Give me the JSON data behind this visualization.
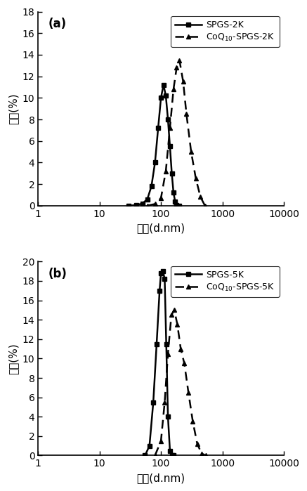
{
  "panel_a": {
    "label": "(a)",
    "ylim": [
      0,
      18
    ],
    "yticks": [
      0,
      2,
      4,
      6,
      8,
      10,
      12,
      14,
      16,
      18
    ],
    "line1_label": "SPGS-2K",
    "line2_label": "CoQ",
    "line2_label_sub": "10",
    "line2_label_suffix": "-SPGS-2K",
    "line1_x": [
      30,
      40,
      50,
      60,
      70,
      80,
      90,
      100,
      110,
      120,
      130,
      140,
      150,
      160,
      170,
      180,
      200
    ],
    "line1_y": [
      0.0,
      0.05,
      0.2,
      0.6,
      1.8,
      4.0,
      7.2,
      10.0,
      11.2,
      10.2,
      8.0,
      5.5,
      3.0,
      1.2,
      0.4,
      0.05,
      0.0
    ],
    "line2_x": [
      60,
      80,
      100,
      120,
      140,
      160,
      180,
      200,
      230,
      260,
      310,
      370,
      440,
      520
    ],
    "line2_y": [
      0.0,
      0.15,
      0.7,
      3.2,
      7.2,
      10.8,
      12.8,
      13.5,
      11.5,
      8.5,
      5.0,
      2.5,
      0.8,
      0.0
    ]
  },
  "panel_b": {
    "label": "(b)",
    "ylim": [
      0,
      20
    ],
    "yticks": [
      0,
      2,
      4,
      6,
      8,
      10,
      12,
      14,
      16,
      18,
      20
    ],
    "line1_label": "SPGS-5K",
    "line2_label": "CoQ",
    "line2_label_sub": "10",
    "line2_label_suffix": "-SPGS-5K",
    "line1_x": [
      55,
      65,
      75,
      85,
      95,
      100,
      108,
      115,
      122,
      130,
      140,
      150,
      160
    ],
    "line1_y": [
      0.0,
      1.0,
      5.5,
      11.5,
      17.0,
      18.8,
      19.0,
      18.2,
      11.5,
      4.0,
      0.5,
      0.05,
      0.0
    ],
    "line2_x": [
      80,
      100,
      115,
      130,
      148,
      165,
      185,
      210,
      240,
      280,
      330,
      390,
      460,
      540
    ],
    "line2_y": [
      0.0,
      1.5,
      5.5,
      10.5,
      14.5,
      15.0,
      13.5,
      11.0,
      9.5,
      6.5,
      3.5,
      1.2,
      0.2,
      0.0
    ]
  },
  "xlabel": "直径(d.nm)",
  "ylabel": "强度(%)",
  "xlim": [
    1,
    10000
  ],
  "color": "#000000",
  "line1_marker": "s",
  "line2_marker": "^",
  "markersize": 5,
  "linewidth": 1.8
}
